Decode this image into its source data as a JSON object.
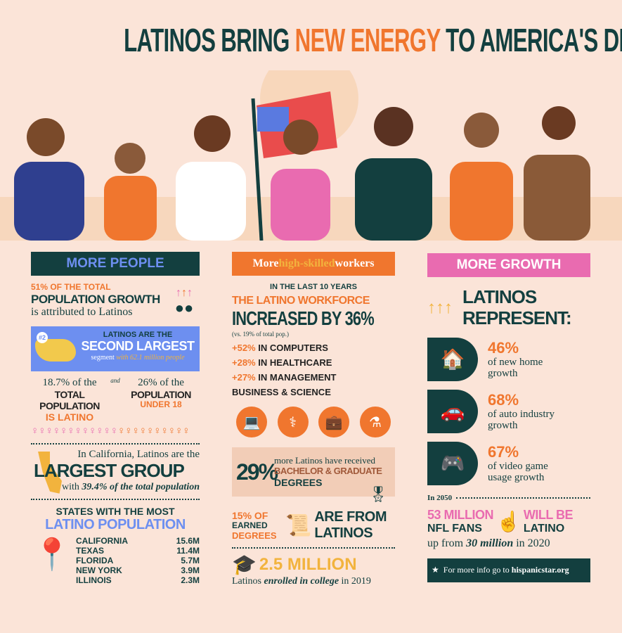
{
  "title": {
    "part1": "LATINOS BRING ",
    "part2": "NEW ENERGY",
    "part3": " TO AMERICA'S DNA"
  },
  "colors": {
    "background": "#fbe4d8",
    "teal": "#133f3f",
    "orange": "#f0762e",
    "pink": "#e96bb0",
    "blue": "#6d8ff0",
    "yellow": "#f2b33d"
  },
  "left": {
    "header": "MORE PEOPLE",
    "growth": {
      "line1": "51% OF THE TOTAL",
      "line2": "POPULATION GROWTH",
      "line3": "is attributed to Latinos",
      "icon": "people-arrows-icon"
    },
    "second": {
      "badge": "#2",
      "line1": "LATINOS ARE THE",
      "line2": "SECOND LARGEST",
      "line3a": "segment ",
      "line3b": "with 62.1 million people"
    },
    "share": {
      "a1": "18.7% of the",
      "a2": "TOTAL POPULATION",
      "a3": "IS LATINO",
      "and": "and",
      "b1": "26% of the",
      "b2": "POPULATION",
      "b3": "UNDER 18"
    },
    "california": {
      "line1": "In California, Latinos are the",
      "line2": "LARGEST GROUP",
      "line3a": "with ",
      "line3b": "39.4% of the total population"
    },
    "states": {
      "title1": "STATES WITH THE MOST",
      "title2": "LATINO POPULATION",
      "rows": [
        {
          "state": "CALIFORNIA",
          "value": "15.6M"
        },
        {
          "state": "TEXAS",
          "value": "11.4M"
        },
        {
          "state": "FLORIDA",
          "value": "5.7M"
        },
        {
          "state": "NEW YORK",
          "value": "3.9M"
        },
        {
          "state": "ILLINOIS",
          "value": "2.3M"
        }
      ]
    }
  },
  "middle": {
    "header": {
      "a": "More ",
      "b": "high-skilled",
      "c": " workers"
    },
    "last10": "IN THE LAST 10 YEARS",
    "workforce1": "THE LATINO WORKFORCE",
    "workforce2": "INCREASED BY 36%",
    "note": "(vs. 19% of total pop.)",
    "stats": [
      {
        "pct": "+52%",
        "label": "IN COMPUTERS"
      },
      {
        "pct": "+28%",
        "label": "IN HEALTHCARE"
      },
      {
        "pct": "+27%",
        "label": "IN MANAGEMENT"
      }
    ],
    "stat3_line2": "BUSINESS & SCIENCE",
    "icons": [
      "laptop-icon",
      "caduceus-icon",
      "briefcase-icon",
      "flask-icon"
    ],
    "degrees": {
      "pct": "29%",
      "line1": "more Latinos have received",
      "line2": "BACHELOR & GRADUATE",
      "line3": "DEGREES"
    },
    "earned": {
      "a1": "15% OF",
      "a2": "EARNED",
      "a3": "DEGREES",
      "b1": "ARE FROM",
      "b2": "LATINOS"
    },
    "college": {
      "big": "2.5 MILLION",
      "a": "Latinos ",
      "b": "enrolled in college",
      "c": " in 2019"
    }
  },
  "right": {
    "header": "MORE GROWTH",
    "represent1": "LATINOS",
    "represent2": "REPRESENT:",
    "items": [
      {
        "pct": "46%",
        "label": "of new home growth",
        "icon": "house-hand-icon"
      },
      {
        "pct": "68%",
        "label": "of auto industry growth",
        "icon": "cars-icon"
      },
      {
        "pct": "67%",
        "label": "of video game usage growth",
        "icon": "gamepad-icon"
      }
    ],
    "year": "In 2050",
    "nfl": {
      "a1": "53 MILLION",
      "a2": "NFL FANS",
      "b1": "WILL BE",
      "b2": "LATINO",
      "c1": "up from ",
      "c2": "30 million",
      "c3": " in 2020"
    },
    "footer": {
      "text": "For more info go to ",
      "link": "hispanicstar.org"
    }
  }
}
